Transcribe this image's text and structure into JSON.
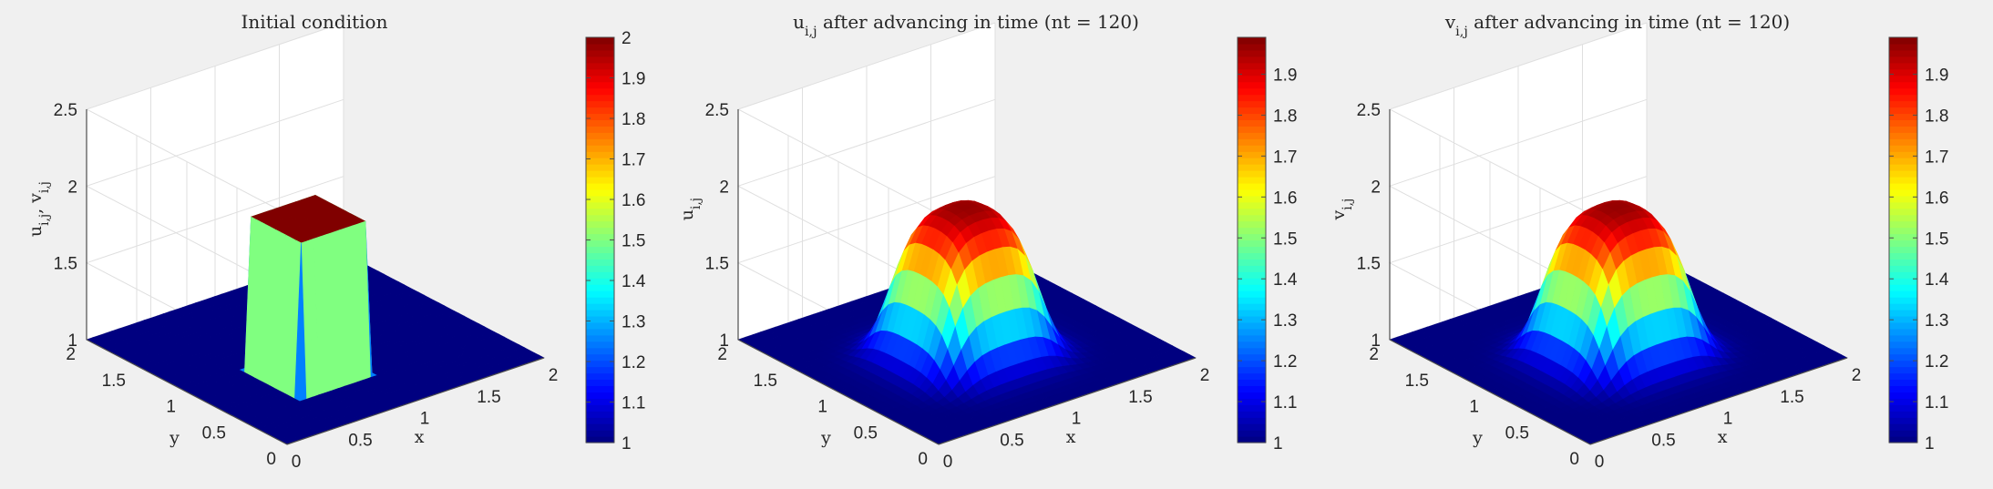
{
  "figure": {
    "background": "#f0f0f0",
    "colormap": "jet"
  },
  "chart_data": [
    {
      "type": "surface3d",
      "title": "Initial condition",
      "xlabel": "x",
      "ylabel": "y",
      "zlabel": "u_{i,j}, v_{i,j}",
      "xlim": [
        0,
        2
      ],
      "ylim": [
        0,
        2
      ],
      "zlim": [
        1,
        2.5
      ],
      "xticks": [
        "0",
        "0.5",
        "1",
        "1.5",
        "2"
      ],
      "yticks": [
        "0",
        "0.5",
        "1",
        "1.5",
        "2"
      ],
      "zticks": [
        "1",
        "1.5",
        "2",
        "2.5"
      ],
      "grid": true,
      "surface": "hat: z = 2 for 0.5 <= x <= 1 and 0.5 <= y <= 1, z = 1 elsewhere",
      "zmin": 1,
      "zmax": 2,
      "colorbar": {
        "range": [
          1,
          2
        ],
        "ticks": [
          "1",
          "1.1",
          "1.2",
          "1.3",
          "1.4",
          "1.5",
          "1.6",
          "1.7",
          "1.8",
          "1.9",
          "2"
        ]
      }
    },
    {
      "type": "surface3d",
      "title": "u_{i,j} after advancing in time (nt = 120)",
      "xlabel": "x",
      "ylabel": "y",
      "zlabel": "u_{i,j}",
      "xlim": [
        0,
        2
      ],
      "ylim": [
        0,
        2
      ],
      "zlim": [
        1,
        2.5
      ],
      "xticks": [
        "0",
        "0.5",
        "1",
        "1.5",
        "2"
      ],
      "yticks": [
        "0",
        "0.5",
        "1",
        "1.5",
        "2"
      ],
      "zticks": [
        "1",
        "1.5",
        "2",
        "2.5"
      ],
      "grid": true,
      "surface": "smoothed hump centered near x = 1, y = 1, plateau max about 1.99, base 1",
      "zmin": 1,
      "zmax": 1.99,
      "colorbar": {
        "range": [
          1,
          1.99
        ],
        "ticks": [
          "1",
          "1.1",
          "1.2",
          "1.3",
          "1.4",
          "1.5",
          "1.6",
          "1.7",
          "1.8",
          "1.9"
        ]
      }
    },
    {
      "type": "surface3d",
      "title": "v_{i,j} after advancing in time (nt = 120)",
      "xlabel": "x",
      "ylabel": "y",
      "zlabel": "v_{i,j}",
      "xlim": [
        0,
        2
      ],
      "ylim": [
        0,
        2
      ],
      "zlim": [
        1,
        2.5
      ],
      "xticks": [
        "0",
        "0.5",
        "1",
        "1.5",
        "2"
      ],
      "yticks": [
        "0",
        "0.5",
        "1",
        "1.5",
        "2"
      ],
      "zticks": [
        "1",
        "1.5",
        "2",
        "2.5"
      ],
      "grid": true,
      "surface": "smoothed hump centered near x = 1, y = 1, plateau max about 1.99, base 1",
      "zmin": 1,
      "zmax": 1.99,
      "colorbar": {
        "range": [
          1,
          1.99
        ],
        "ticks": [
          "1",
          "1.1",
          "1.2",
          "1.3",
          "1.4",
          "1.5",
          "1.6",
          "1.7",
          "1.8",
          "1.9"
        ]
      }
    }
  ]
}
